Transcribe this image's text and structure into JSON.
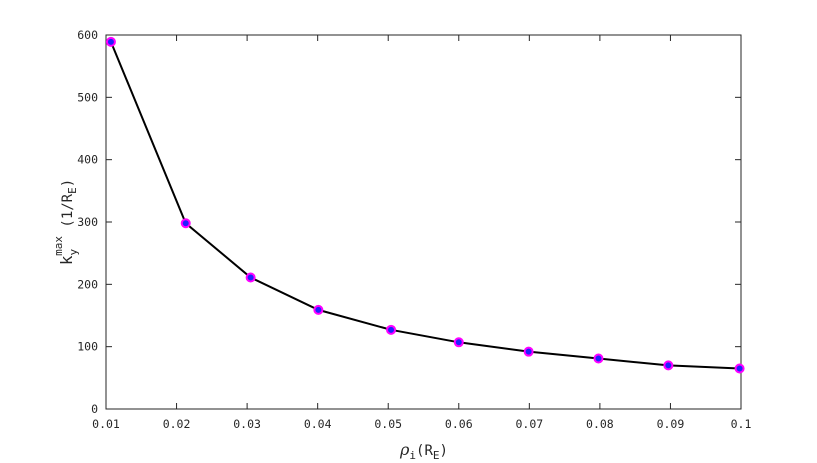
{
  "chart_data": {
    "type": "line",
    "x": [
      0.0107,
      0.0213,
      0.0305,
      0.0401,
      0.0504,
      0.06,
      0.0699,
      0.0798,
      0.0897,
      0.0998
    ],
    "series": [
      {
        "values": [
          589,
          298,
          211,
          159,
          127,
          107,
          92,
          81,
          70,
          65
        ]
      }
    ],
    "xlabel": {
      "main": "ρ",
      "sub": "i",
      "rest": "(R",
      "sub2": "E",
      "close": ")"
    },
    "ylabel": {
      "main": "k",
      "sub": "y",
      "sup": "max",
      "rest": " (1/R",
      "sub2": "E",
      "close": ")"
    },
    "xlim": [
      0.01,
      0.1
    ],
    "ylim": [
      0,
      600
    ],
    "xticks": [
      "0.01",
      "0.02",
      "0.03",
      "0.04",
      "0.05",
      "0.06",
      "0.07",
      "0.08",
      "0.09",
      "0.1"
    ],
    "yticks": [
      "0",
      "100",
      "200",
      "300",
      "400",
      "500",
      "600"
    ],
    "grid": false,
    "colors": {
      "line": "#000000",
      "marker_fill": "#2020ff",
      "marker_edge": "#ff00ff",
      "axes": "#262626"
    }
  }
}
